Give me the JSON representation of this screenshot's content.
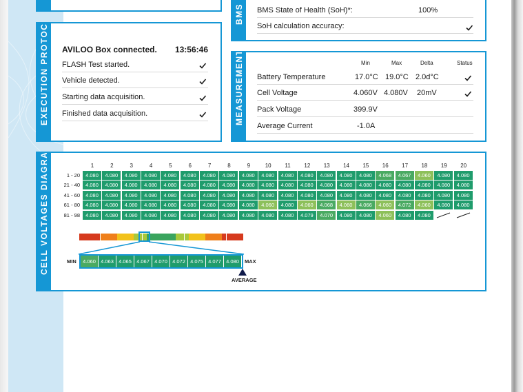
{
  "bms_panel": {
    "tab_label": "BMS",
    "rows": [
      {
        "label": "BMS State of Health (SoH)*:",
        "value": "100%"
      },
      {
        "label": "SoH calculation accuracy:",
        "check": true
      }
    ]
  },
  "execution_protocol": {
    "tab_label": "EXECUTION PROTOCOL",
    "header": {
      "text": "AVILOO Box connected.",
      "time": "13:56:46"
    },
    "steps": [
      {
        "label": "FLASH Test started.",
        "check": true
      },
      {
        "label": "Vehicle detected.",
        "check": true
      },
      {
        "label": "Starting data acquisition.",
        "check": true
      },
      {
        "label": "Finished data acquisition.",
        "check": true
      }
    ]
  },
  "measurements": {
    "tab_label": "MEASUREMENTS",
    "columns": [
      "Min",
      "Max",
      "Delta",
      "Status"
    ],
    "rows": [
      {
        "label": "Battery Temperature",
        "min": "17.0°C",
        "max": "19.0°C",
        "delta": "2.0d°C",
        "status": true
      },
      {
        "label": "Cell Voltage",
        "min": "4.060V",
        "max": "4.080V",
        "delta": "20mV",
        "status": true
      },
      {
        "label": "Pack Voltage",
        "min": "399.9V",
        "max": "",
        "delta": "",
        "status": false
      },
      {
        "label": "Average Current",
        "min": "-1.0A",
        "max": "",
        "delta": "",
        "status": false
      }
    ]
  },
  "cell_voltages": {
    "tab_label": "CELL VOLTAGES DIAGRAM",
    "column_headers": [
      "1",
      "2",
      "3",
      "4",
      "5",
      "6",
      "7",
      "8",
      "9",
      "10",
      "11",
      "12",
      "13",
      "14",
      "15",
      "16",
      "17",
      "18",
      "19",
      "20"
    ],
    "row_labels": [
      "1 - 20",
      "21 - 40",
      "41 - 60",
      "61 - 80",
      "81 - 98"
    ],
    "rows": [
      [
        "4.080",
        "4.080",
        "4.080",
        "4.080",
        "4.080",
        "4.080",
        "4.080",
        "4.080",
        "4.080",
        "4.080",
        "4.080",
        "4.080",
        "4.080",
        "4.080",
        "4.080",
        "4.068",
        "4.067",
        "4.060",
        "4.080",
        "4.080"
      ],
      [
        "4.080",
        "4.080",
        "4.080",
        "4.080",
        "4.080",
        "4.080",
        "4.080",
        "4.080",
        "4.080",
        "4.080",
        "4.080",
        "4.080",
        "4.080",
        "4.080",
        "4.080",
        "4.080",
        "4.080",
        "4.080",
        "4.080",
        "4.080"
      ],
      [
        "4.080",
        "4.080",
        "4.080",
        "4.080",
        "4.080",
        "4.080",
        "4.080",
        "4.080",
        "4.080",
        "4.080",
        "4.080",
        "4.080",
        "4.080",
        "4.080",
        "4.080",
        "4.080",
        "4.080",
        "4.080",
        "4.080",
        "4.080"
      ],
      [
        "4.080",
        "4.080",
        "4.080",
        "4.080",
        "4.080",
        "4.080",
        "4.080",
        "4.080",
        "4.080",
        "4.060",
        "4.080",
        "4.060",
        "4.068",
        "4.060",
        "4.066",
        "4.060",
        "4.072",
        "4.060",
        "4.080",
        "4.080"
      ],
      [
        "4.080",
        "4.080",
        "4.080",
        "4.080",
        "4.080",
        "4.080",
        "4.080",
        "4.080",
        "4.080",
        "4.080",
        "4.080",
        "4.079",
        "4.070",
        "4.080",
        "4.080",
        "4.060",
        "4.080",
        "4.080",
        "",
        ""
      ]
    ],
    "scale_values": [
      "4.060",
      "4.063",
      "4.065",
      "4.067",
      "4.070",
      "4.072",
      "4.075",
      "4.077",
      "4.080"
    ],
    "min_label": "MIN",
    "max_label": "MAX",
    "average_label": "AVERAGE",
    "colors": {
      "green": "#1f9c6c",
      "light_green": "#8dc05a",
      "mid_green": "#4aaa62",
      "accent": "#1597d5"
    }
  }
}
